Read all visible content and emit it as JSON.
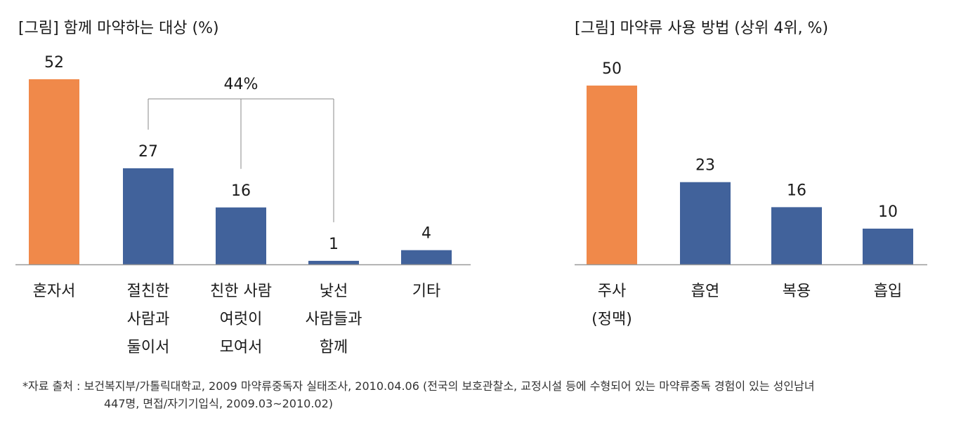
{
  "chart_data": [
    {
      "type": "bar",
      "title": "[그림] 함께 마약하는 대상 (%)",
      "categories": [
        [
          "혼자서"
        ],
        [
          "절친한",
          "사람과",
          "둘이서"
        ],
        [
          "친한 사람",
          "여럿이",
          "모여서"
        ],
        [
          "낯선",
          "사람들과",
          "함께"
        ],
        [
          "기타"
        ]
      ],
      "values": [
        52,
        27,
        16,
        1,
        4
      ],
      "highlight_index": 0,
      "colors": {
        "highlight": "#F0894A",
        "bar": "#41629B",
        "axis": "#999999",
        "bracket": "#888888"
      },
      "annotation": {
        "label": "44%",
        "spans": [
          1,
          2,
          3
        ]
      },
      "ylim": [
        0,
        52
      ]
    },
    {
      "type": "bar",
      "title": "[그림] 마약류 사용 방법 (상위 4위, %)",
      "categories": [
        [
          "주사",
          "(정맥)"
        ],
        [
          "흡연"
        ],
        [
          "복용"
        ],
        [
          "흡입"
        ]
      ],
      "values": [
        50,
        23,
        16,
        10
      ],
      "highlight_index": 0,
      "colors": {
        "highlight": "#F0894A",
        "bar": "#41629B",
        "axis": "#999999"
      },
      "ylim": [
        0,
        50
      ]
    }
  ],
  "source": {
    "line1": "*자료 출처 : 보건복지부/가톨릭대학교, 2009 마약류중독자 실태조사, 2010.04.06 (전국의 보호관찰소, 교정시설 등에 수형되어 있는 마약류중독 경험이 있는 성인남녀",
    "line2": "447명, 면접/자기기입식, 2009.03~2010.02)"
  }
}
